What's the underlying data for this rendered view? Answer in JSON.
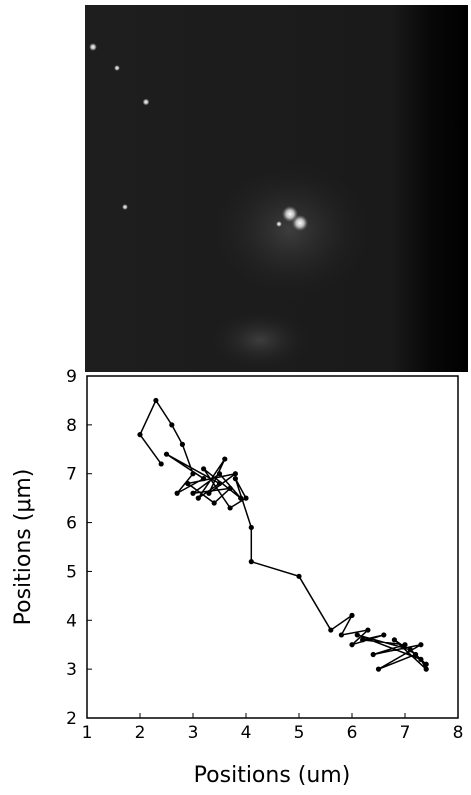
{
  "chart_data": {
    "type": "line",
    "xlabel": "Positions (um)",
    "ylabel": "Positions (μm)",
    "xlim": [
      1,
      8
    ],
    "ylim": [
      2,
      9
    ],
    "xticks": [
      1,
      2,
      3,
      4,
      5,
      6,
      7,
      8
    ],
    "yticks": [
      2,
      3,
      4,
      5,
      6,
      7,
      8,
      9
    ],
    "color": "#000000",
    "x": [
      2.4,
      2.0,
      2.3,
      2.6,
      2.8,
      3.0,
      2.7,
      3.2,
      2.5,
      3.5,
      3.1,
      3.6,
      3.3,
      3.8,
      2.9,
      3.4,
      3.7,
      3.0,
      3.5,
      3.9,
      3.2,
      3.7,
      4.0,
      3.8,
      4.1,
      4.1,
      5.0,
      5.6,
      6.0,
      5.8,
      6.3,
      6.0,
      6.6,
      6.2,
      7.0,
      6.4,
      7.3,
      6.5,
      7.2,
      6.8,
      7.4,
      7.3,
      6.1,
      7.1,
      7.4
    ],
    "values": [
      7.2,
      7.8,
      8.5,
      8.0,
      7.6,
      7.0,
      6.6,
      6.9,
      7.4,
      6.8,
      6.5,
      7.3,
      6.6,
      7.0,
      6.8,
      6.4,
      6.7,
      6.6,
      7.0,
      6.5,
      7.1,
      6.3,
      6.5,
      6.9,
      5.9,
      5.2,
      4.9,
      3.8,
      4.1,
      3.7,
      3.8,
      3.5,
      3.7,
      3.6,
      3.5,
      3.3,
      3.5,
      3.0,
      3.3,
      3.6,
      3.0,
      3.2,
      3.7,
      3.4,
      3.1
    ]
  }
}
